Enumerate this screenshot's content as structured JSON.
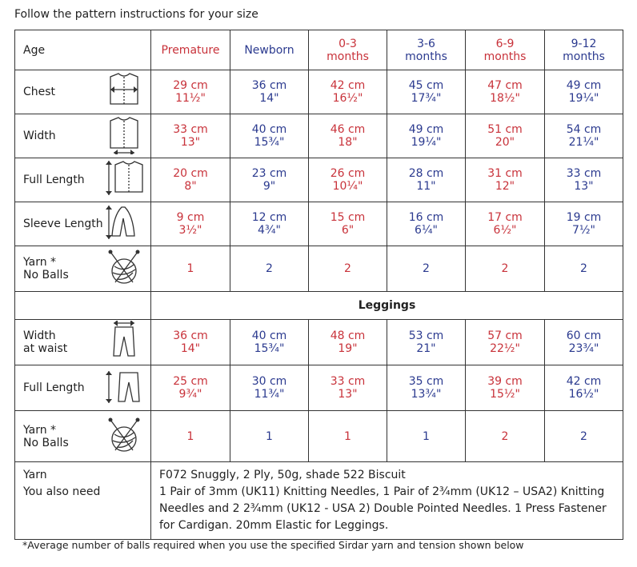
{
  "header": {
    "title": "Follow the pattern instructions for your size"
  },
  "table": {
    "column_colors": [
      "#c8323a",
      "#2b3a8f",
      "#c8323a",
      "#2b3a8f",
      "#c8323a",
      "#2b3a8f"
    ],
    "headers": [
      [
        "Age"
      ],
      [
        "Premature"
      ],
      [
        "Newborn"
      ],
      [
        "0-3",
        "months"
      ],
      [
        "3-6",
        "months"
      ],
      [
        "6-9",
        "months"
      ],
      [
        "9-12",
        "months"
      ]
    ],
    "rows": [
      {
        "label": [
          "Chest"
        ],
        "icon": "chest",
        "cells": [
          [
            "29 cm",
            "11½\""
          ],
          [
            "36 cm",
            "14\""
          ],
          [
            "42 cm",
            "16½\""
          ],
          [
            "45 cm",
            "17¾\""
          ],
          [
            "47 cm",
            "18½\""
          ],
          [
            "49 cm",
            "19¼\""
          ]
        ]
      },
      {
        "label": [
          "Width"
        ],
        "icon": "width",
        "cells": [
          [
            "33 cm",
            "13\""
          ],
          [
            "40 cm",
            "15¾\""
          ],
          [
            "46 cm",
            "18\""
          ],
          [
            "49 cm",
            "19¼\""
          ],
          [
            "51 cm",
            "20\""
          ],
          [
            "54 cm",
            "21¼\""
          ]
        ]
      },
      {
        "label": [
          "Full Length"
        ],
        "icon": "length",
        "cells": [
          [
            "20 cm",
            "8\""
          ],
          [
            "23 cm",
            "9\""
          ],
          [
            "26 cm",
            "10¼\""
          ],
          [
            "28 cm",
            "11\""
          ],
          [
            "31 cm",
            "12\""
          ],
          [
            "33 cm",
            "13\""
          ]
        ]
      },
      {
        "label": [
          "Sleeve Length"
        ],
        "icon": "sleeve",
        "cells": [
          [
            "9 cm",
            "3½\""
          ],
          [
            "12 cm",
            "4¾\""
          ],
          [
            "15 cm",
            "6\""
          ],
          [
            "16 cm",
            "6¼\""
          ],
          [
            "17 cm",
            "6½\""
          ],
          [
            "19 cm",
            "7½\""
          ]
        ]
      },
      {
        "label": [
          "Yarn *",
          "No Balls"
        ],
        "icon": "yarn",
        "cells": [
          [
            "1"
          ],
          [
            "2"
          ],
          [
            "2"
          ],
          [
            "2"
          ],
          [
            "2"
          ],
          [
            "2"
          ]
        ]
      },
      {
        "section": "Leggings"
      },
      {
        "label": [
          "Width",
          "at waist"
        ],
        "icon": "waist",
        "cells": [
          [
            "36 cm",
            "14\""
          ],
          [
            "40 cm",
            "15¾\""
          ],
          [
            "48 cm",
            "19\""
          ],
          [
            "53 cm",
            "21\""
          ],
          [
            "57 cm",
            "22½\""
          ],
          [
            "60 cm",
            "23¾\""
          ]
        ]
      },
      {
        "label": [
          "Full Length"
        ],
        "icon": "legs",
        "cells": [
          [
            "25 cm",
            "9¾\""
          ],
          [
            "30 cm",
            "11¾\""
          ],
          [
            "33 cm",
            "13\""
          ],
          [
            "35 cm",
            "13¾\""
          ],
          [
            "39 cm",
            "15½\""
          ],
          [
            "42 cm",
            "16½\""
          ]
        ]
      },
      {
        "label": [
          "Yarn *",
          "No Balls"
        ],
        "icon": "yarn",
        "cells": [
          [
            "1"
          ],
          [
            "1"
          ],
          [
            "1"
          ],
          [
            "1"
          ],
          [
            "2"
          ],
          [
            "2"
          ]
        ]
      }
    ],
    "materials": {
      "labels": [
        "Yarn",
        "You also need"
      ],
      "lines": [
        "F072 Snuggly, 2 Ply, 50g, shade 522 Biscuit",
        "1 Pair of 3mm (UK11) Knitting Needles, 1 Pair of 2¾mm (UK12 – USA2) Knitting Needles and 2 2¾mm (UK12 - USA 2) Double Pointed Needles. 1 Press Fastener for Cardigan. 20mm Elastic for Leggings."
      ]
    }
  },
  "footnote": "*Average number of balls required when you use the specified Sirdar yarn and tension shown below"
}
